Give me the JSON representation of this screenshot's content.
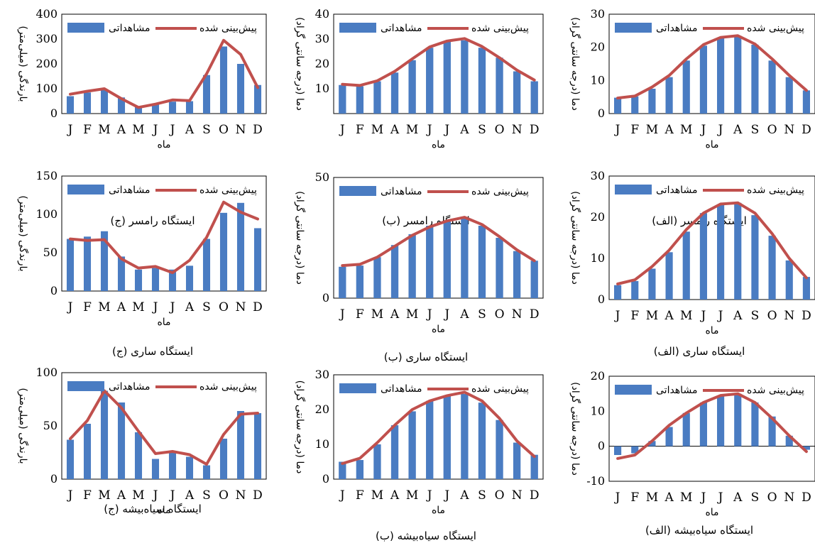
{
  "figure": {
    "xlabel": "ماه",
    "months": [
      "J",
      "F",
      "M",
      "A",
      "M",
      "J",
      "J",
      "A",
      "S",
      "O",
      "N",
      "D"
    ],
    "legend_observed": "مشاهداتی",
    "legend_predicted": "پیش‌بینی شده",
    "colors": {
      "observed": "#4a7cc2",
      "predicted": "#c0504d"
    }
  },
  "chart_data": [
    {
      "id": "ramsar-alef",
      "type": "bar",
      "caption": "ایستگاه رامسر (الف)",
      "ylabel": "دما (درجه سانتی گراد)",
      "ylim": [
        0,
        30
      ],
      "yticks": [
        0,
        10,
        20,
        30
      ],
      "categories": [
        "J",
        "F",
        "M",
        "A",
        "M",
        "J",
        "J",
        "A",
        "S",
        "O",
        "N",
        "D"
      ],
      "series": [
        {
          "name": "مشاهداتی",
          "kind": "bar",
          "values": [
            4.8,
            5.2,
            7.5,
            11,
            16,
            20.5,
            22.8,
            23.5,
            20.8,
            16,
            11,
            7
          ]
        },
        {
          "name": "پیش‌بینی شده",
          "kind": "line",
          "values": [
            4.7,
            5.3,
            8,
            11.5,
            16.5,
            20.8,
            23,
            23.5,
            21,
            16.5,
            11.5,
            7
          ]
        }
      ]
    },
    {
      "id": "ramsar-be",
      "type": "bar",
      "caption": "ایستگاه رامسر (ب)",
      "ylabel": "دما (درجه سانتی گراد)",
      "ylim": [
        0,
        40
      ],
      "yticks": [
        10,
        20,
        30,
        40
      ],
      "categories": [
        "J",
        "F",
        "M",
        "A",
        "M",
        "J",
        "J",
        "A",
        "S",
        "O",
        "N",
        "D"
      ],
      "series": [
        {
          "name": "مشاهداتی",
          "kind": "bar",
          "values": [
            11.5,
            11,
            13,
            16.5,
            21.5,
            26.5,
            29,
            29.5,
            26.5,
            22.5,
            17,
            13
          ]
        },
        {
          "name": "پیش‌بینی شده",
          "kind": "line",
          "values": [
            11.8,
            11.3,
            13.2,
            17,
            22,
            26.8,
            29.2,
            30.2,
            27,
            22.5,
            17.5,
            13.5
          ]
        }
      ]
    },
    {
      "id": "ramsar-je",
      "type": "bar",
      "caption": "ایستگاه رامسر (ج)",
      "ylabel": "بارندگی (میلی‌متر)",
      "ylim": [
        0,
        400
      ],
      "yticks": [
        0,
        100,
        200,
        300,
        400
      ],
      "categories": [
        "J",
        "F",
        "M",
        "A",
        "M",
        "J",
        "J",
        "A",
        "S",
        "O",
        "N",
        "D"
      ],
      "series": [
        {
          "name": "مشاهداتی",
          "kind": "bar",
          "values": [
            70,
            85,
            95,
            65,
            30,
            40,
            48,
            50,
            155,
            270,
            200,
            115
          ]
        },
        {
          "name": "پیش‌بینی شده",
          "kind": "line",
          "values": [
            78,
            90,
            100,
            60,
            25,
            38,
            55,
            52,
            160,
            295,
            238,
            105
          ]
        }
      ]
    },
    {
      "id": "sari-alef",
      "type": "bar",
      "caption": "ایستگاه ساری (الف)",
      "ylabel": "دما (درجه سانتی گراد)",
      "ylim": [
        0,
        30
      ],
      "yticks": [
        0,
        10,
        20,
        30
      ],
      "categories": [
        "J",
        "F",
        "M",
        "A",
        "M",
        "J",
        "J",
        "A",
        "S",
        "O",
        "N",
        "D"
      ],
      "series": [
        {
          "name": "مشاهداتی",
          "kind": "bar",
          "values": [
            3.5,
            4.5,
            7.5,
            11.5,
            16.5,
            21,
            23,
            23.5,
            20.5,
            15.5,
            9.5,
            5.5
          ]
        },
        {
          "name": "پیش‌بینی شده",
          "kind": "line",
          "values": [
            3.8,
            4.8,
            8,
            12,
            17,
            21,
            23.2,
            23.5,
            21,
            16,
            10,
            5.3
          ]
        }
      ]
    },
    {
      "id": "sari-be",
      "type": "bar",
      "caption": "ایستگاه ساری (ب)",
      "ylabel": "دما (درجه سانتی گراد)",
      "ylim": [
        0,
        50
      ],
      "yticks": [
        0,
        50
      ],
      "categories": [
        "J",
        "F",
        "M",
        "A",
        "M",
        "J",
        "J",
        "A",
        "S",
        "O",
        "N",
        "D"
      ],
      "series": [
        {
          "name": "مشاهداتی",
          "kind": "bar",
          "values": [
            13,
            13.5,
            17,
            22,
            26.5,
            30,
            32,
            33,
            30,
            25,
            19.5,
            15.5
          ]
        },
        {
          "name": "پیش‌بینی شده",
          "kind": "line",
          "values": [
            13.5,
            14,
            17,
            21.5,
            26,
            29.5,
            32,
            33.5,
            30.5,
            25.5,
            20,
            15.5
          ]
        }
      ]
    },
    {
      "id": "sari-je",
      "type": "bar",
      "caption": "ایستگاه ساری (ج)",
      "ylabel": "بارندگی (میلی‌متر)",
      "ylim": [
        0,
        150
      ],
      "yticks": [
        0,
        50,
        100,
        150
      ],
      "categories": [
        "J",
        "F",
        "M",
        "A",
        "M",
        "J",
        "J",
        "A",
        "S",
        "O",
        "N",
        "D"
      ],
      "series": [
        {
          "name": "مشاهداتی",
          "kind": "bar",
          "values": [
            68,
            71,
            78,
            45,
            28,
            30,
            28,
            33,
            68,
            102,
            115,
            82
          ]
        },
        {
          "name": "پیش‌بینی شده",
          "kind": "line",
          "values": [
            68,
            66,
            67,
            42,
            30,
            32,
            24,
            40,
            70,
            116,
            103,
            94
          ]
        }
      ]
    },
    {
      "id": "siahbisheh-alef",
      "type": "bar",
      "caption": "ایستگاه سیاه‌بیشه (الف)",
      "ylabel": "دما (درجه سانتی گراد)",
      "ylim": [
        -10,
        20
      ],
      "yticks": [
        -10,
        0,
        10,
        20
      ],
      "categories": [
        "J",
        "F",
        "M",
        "A",
        "M",
        "J",
        "J",
        "A",
        "S",
        "O",
        "N",
        "D"
      ],
      "series": [
        {
          "name": "مشاهداتی",
          "kind": "bar",
          "values": [
            -2.5,
            -2,
            1.5,
            5.5,
            9.5,
            12.5,
            14.5,
            15,
            12.5,
            8.5,
            3,
            -1
          ]
        },
        {
          "name": "پیش‌بینی شده",
          "kind": "line",
          "values": [
            -3.5,
            -2.5,
            1.5,
            6,
            9.5,
            12.5,
            14.5,
            15,
            12.5,
            8,
            3,
            -1.5
          ]
        }
      ]
    },
    {
      "id": "siahbisheh-be",
      "type": "bar",
      "caption": "ایستگاه سیاه‌بیشه (ب)",
      "ylabel": "دما (درجه سانتی گراد)",
      "ylim": [
        0,
        30
      ],
      "yticks": [
        0,
        10,
        20,
        30
      ],
      "categories": [
        "J",
        "F",
        "M",
        "A",
        "M",
        "J",
        "J",
        "A",
        "S",
        "O",
        "N",
        "D"
      ],
      "series": [
        {
          "name": "مشاهداتی",
          "kind": "bar",
          "values": [
            5,
            5.5,
            10,
            15.5,
            19.5,
            22.5,
            24,
            24.5,
            22,
            17,
            10.5,
            7
          ]
        },
        {
          "name": "پیش‌بینی شده",
          "kind": "line",
          "values": [
            4.5,
            6,
            10.5,
            15.5,
            20,
            22.5,
            24,
            25,
            22.5,
            17.5,
            11,
            6.5
          ]
        }
      ]
    },
    {
      "id": "siahbisheh-je",
      "type": "bar",
      "caption": "ایستگاه سیاه‌بیشه (ج)",
      "ylabel": "بارندگی (میلی‌متر)",
      "ylim": [
        0,
        100
      ],
      "yticks": [
        0,
        50,
        100
      ],
      "categories": [
        "J",
        "F",
        "M",
        "A",
        "M",
        "J",
        "J",
        "A",
        "S",
        "O",
        "N",
        "D"
      ],
      "series": [
        {
          "name": "مشاهداتی",
          "kind": "bar",
          "values": [
            37,
            52,
            83,
            72,
            44,
            19,
            26,
            21,
            13,
            38,
            64,
            62
          ]
        },
        {
          "name": "پیش‌بینی شده",
          "kind": "line",
          "values": [
            38,
            55,
            83,
            67,
            45,
            24,
            26,
            23,
            14,
            42,
            61,
            62
          ]
        }
      ]
    }
  ]
}
